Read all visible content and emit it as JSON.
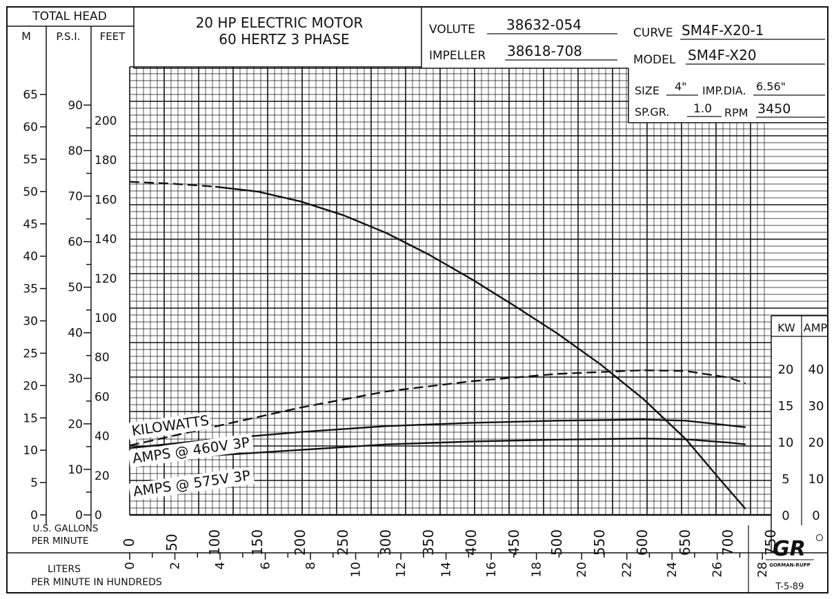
{
  "header": {
    "total_head": "TOTAL HEAD",
    "col_m": "M",
    "col_psi": "P.S.I.",
    "col_feet": "FEET",
    "motor_line1": "20 HP ELECTRIC MOTOR",
    "motor_line2": "60 HERTZ 3 PHASE",
    "volute_label": "VOLUTE",
    "volute_value": "38632-054",
    "curve_label": "CURVE",
    "curve_value": "SM4F-X20-1",
    "impeller_label": "IMPELLER",
    "impeller_value": "38618-708",
    "model_label": "MODEL",
    "model_value": "SM4F-X20",
    "size_label": "SIZE",
    "size_value": "4\"",
    "impdia_label": "IMP.DIA.",
    "impdia_value": "6.56\"",
    "spgr_label": "SP.GR.",
    "spgr_value": "1.0",
    "rpm_label": "RPM",
    "rpm_value": "3450",
    "kw_label": "KW",
    "amp_label": "AMP"
  },
  "footer": {
    "usgpm_line1": "U.S. GALLONS",
    "usgpm_line2": "PER MINUTE",
    "lpm_line1": "LITERS",
    "lpm_line2": "PER MINUTE IN HUNDREDS",
    "brand_logo": "GR",
    "brand_name": "GORMAN-RUPP",
    "doc_code": "T-5-89"
  },
  "chart_data": {
    "type": "line",
    "title": "20 HP ELECTRIC MOTOR 60 HERTZ 3 PHASE",
    "xlabel": "U.S. GALLONS PER MINUTE",
    "xlim": [
      0,
      780
    ],
    "x_ticks": [
      "0",
      "50",
      "100",
      "150",
      "200",
      "250",
      "300",
      "350",
      "400",
      "450",
      "500",
      "550",
      "600",
      "650",
      "700",
      "750"
    ],
    "x2_label": "LITERS PER MINUTE IN HUNDREDS",
    "x2_ticks": [
      "0",
      "2",
      "4",
      "6",
      "8",
      "10",
      "12",
      "14",
      "16",
      "18",
      "20",
      "22",
      "24",
      "26",
      "28"
    ],
    "y_feet_ticks": [
      "0",
      "20",
      "40",
      "60",
      "80",
      "100",
      "120",
      "140",
      "160",
      "180",
      "200"
    ],
    "y_psi_ticks": [
      "0",
      "10",
      "20",
      "30",
      "40",
      "50",
      "60",
      "70",
      "80",
      "90"
    ],
    "y_m_ticks": [
      "0",
      "5",
      "10",
      "15",
      "20",
      "25",
      "30",
      "35",
      "40",
      "45",
      "50",
      "55",
      "60",
      "65"
    ],
    "y_kw_ticks": [
      "0",
      "5",
      "10",
      "15",
      "20"
    ],
    "y_amp_ticks": [
      "0",
      "10",
      "20",
      "30",
      "40"
    ],
    "grid": true,
    "series": [
      {
        "name": "Head (ft)",
        "axis": "feet",
        "style": "solid",
        "x": [
          100,
          150,
          200,
          250,
          300,
          350,
          400,
          450,
          500,
          550,
          600,
          650,
          690,
          720
        ],
        "y": [
          166.5,
          164,
          159,
          152,
          143,
          132,
          119.5,
          106,
          92,
          76.5,
          59,
          38.5,
          18,
          3
        ]
      },
      {
        "name": "Head (ft)",
        "axis": "feet",
        "style": "dashed",
        "x": [
          0,
          50,
          100
        ],
        "y": [
          169,
          168,
          166.5
        ]
      },
      {
        "name": "KILOWATTS",
        "axis": "kw",
        "style": "dashed",
        "x": [
          0,
          100,
          200,
          300,
          400,
          500,
          600,
          650,
          700,
          720
        ],
        "y": [
          9.5,
          12.1,
          14.7,
          16.9,
          18.3,
          19.3,
          19.8,
          19.7,
          18.8,
          18.0
        ]
      },
      {
        "name": "AMPS @ 460V 3P",
        "axis": "amp",
        "style": "solid",
        "x": [
          0,
          100,
          200,
          300,
          400,
          500,
          600,
          650,
          700,
          720
        ],
        "y": [
          18.3,
          20.7,
          22.7,
          24.3,
          25.2,
          25.8,
          26.1,
          25.8,
          24.5,
          24.0
        ]
      },
      {
        "name": "AMPS @ 575V 3P",
        "axis": "amp",
        "style": "solid",
        "x": [
          0,
          100,
          200,
          300,
          400,
          500,
          600,
          650,
          700,
          720
        ],
        "y": [
          14.7,
          16.3,
          17.8,
          19.3,
          20.1,
          20.6,
          20.9,
          20.7,
          19.8,
          19.3
        ]
      }
    ]
  }
}
